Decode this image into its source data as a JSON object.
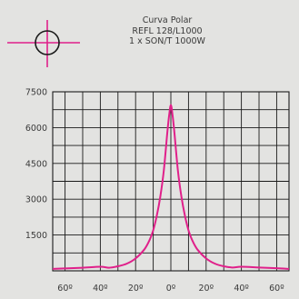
{
  "header": {
    "title": "Curva Polar",
    "model": "REFL 128/L1000",
    "lamp": "1 x SON/T 1000W"
  },
  "icons": {
    "polar_symbol": "crosshair-circle-icon"
  },
  "colors": {
    "background": "#e3e3e1",
    "grid": "#1a1a1a",
    "curve": "#e0208a",
    "text": "#3a3a3a"
  },
  "chart_data": {
    "type": "line",
    "title": "Curva Polar",
    "subtitle": "REFL 128/L1000 — 1 x SON/T 1000W",
    "xlabel": "",
    "ylabel": "",
    "x_tick_labels": [
      "60º",
      "40º",
      "20º",
      "0º",
      "20º",
      "40º",
      "60º"
    ],
    "x_tick_values": [
      -60,
      -40,
      -20,
      0,
      20,
      40,
      60
    ],
    "y_tick_labels": [
      "7500",
      "6000",
      "4500",
      "3000",
      "1500"
    ],
    "y_tick_values": [
      7500,
      6000,
      4500,
      3000,
      1500
    ],
    "xlim": [
      -67,
      67
    ],
    "ylim": [
      0,
      7500
    ],
    "grid": true,
    "legend": "none",
    "series": [
      {
        "x": [
          -67,
          -60,
          -50,
          -40,
          -35,
          -30,
          -25,
          -20,
          -15,
          -12,
          -10,
          -8,
          -6,
          -4,
          -2,
          -1,
          0,
          1,
          2,
          4,
          6,
          8,
          10,
          12,
          15,
          20,
          25,
          30,
          35,
          40,
          50,
          60,
          67
        ],
        "values": [
          80,
          100,
          130,
          170,
          130,
          190,
          300,
          520,
          900,
          1300,
          1700,
          2300,
          3100,
          4200,
          5800,
          6500,
          6950,
          6500,
          5800,
          4200,
          3100,
          2300,
          1700,
          1300,
          900,
          520,
          300,
          190,
          140,
          170,
          140,
          110,
          80
        ]
      }
    ]
  }
}
